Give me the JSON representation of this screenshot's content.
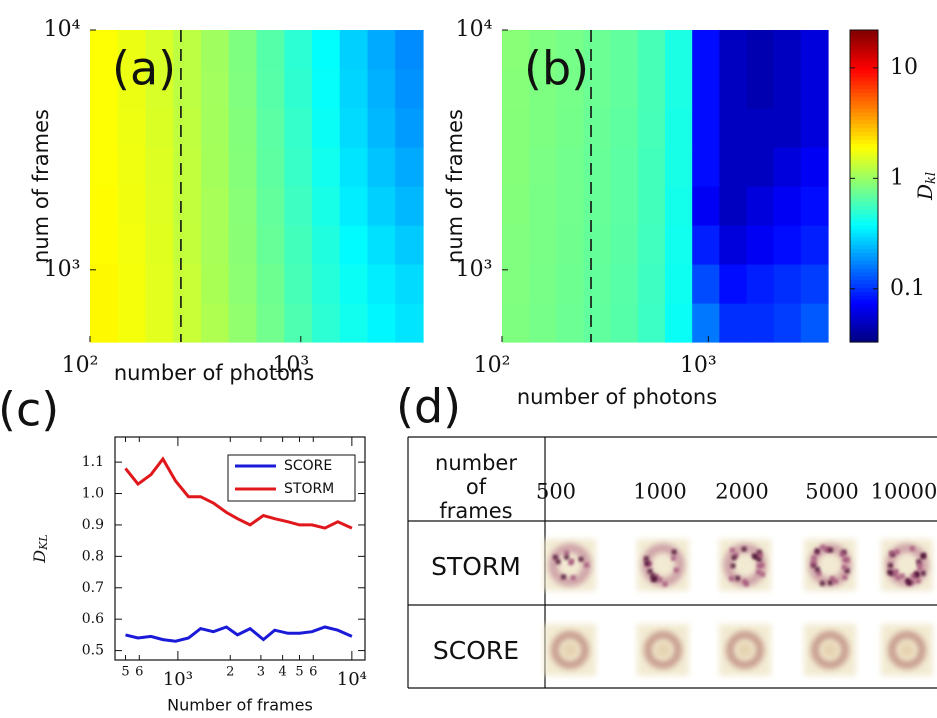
{
  "chart_data": [
    {
      "type": "heatmap",
      "panel": "(a)",
      "xlabel": "number of photons",
      "ylabel": "num of frames",
      "xscale": "log",
      "yscale": "log",
      "xlim": [
        100,
        3800
      ],
      "ylim": [
        500,
        10000
      ],
      "xticks": [
        {
          "value": 100,
          "label": "10²"
        },
        {
          "value": 1000,
          "label": "10³"
        }
      ],
      "yticks": [
        {
          "value": 1000,
          "label": "10³"
        },
        {
          "value": 10000,
          "label": "10⁴"
        }
      ],
      "vline": 270,
      "values": [
        [
          2.0,
          1.8,
          1.6,
          1.35,
          1.15,
          0.95,
          0.78,
          0.62,
          0.5,
          0.42,
          0.36,
          0.32
        ],
        [
          2.0,
          1.8,
          1.6,
          1.35,
          1.12,
          0.93,
          0.76,
          0.6,
          0.48,
          0.4,
          0.34,
          0.3
        ],
        [
          1.95,
          1.78,
          1.58,
          1.32,
          1.1,
          0.91,
          0.73,
          0.58,
          0.46,
          0.37,
          0.31,
          0.27
        ],
        [
          1.95,
          1.76,
          1.56,
          1.3,
          1.1,
          0.9,
          0.71,
          0.56,
          0.44,
          0.34,
          0.28,
          0.24
        ],
        [
          1.9,
          1.75,
          1.55,
          1.3,
          1.08,
          0.88,
          0.69,
          0.54,
          0.42,
          0.32,
          0.26,
          0.22
        ],
        [
          1.9,
          1.72,
          1.52,
          1.28,
          1.07,
          0.87,
          0.68,
          0.53,
          0.4,
          0.3,
          0.24,
          0.2
        ],
        [
          1.9,
          1.7,
          1.5,
          1.26,
          1.06,
          0.86,
          0.66,
          0.51,
          0.39,
          0.29,
          0.23,
          0.19
        ],
        [
          1.9,
          1.7,
          1.5,
          1.25,
          1.05,
          0.85,
          0.65,
          0.5,
          0.38,
          0.28,
          0.22,
          0.18
        ]
      ]
    },
    {
      "type": "heatmap",
      "panel": "(b)",
      "xlabel": "number of photons",
      "ylabel": "num of frames",
      "xscale": "log",
      "yscale": "log",
      "xlim": [
        100,
        3800
      ],
      "ylim": [
        500,
        10000
      ],
      "xticks": [
        {
          "value": 100,
          "label": "10²"
        },
        {
          "value": 1000,
          "label": "10³"
        }
      ],
      "yticks": [
        {
          "value": 1000,
          "label": "10³"
        },
        {
          "value": 10000,
          "label": "10⁴"
        }
      ],
      "vline": 270,
      "values": [
        [
          0.85,
          0.8,
          0.75,
          0.7,
          0.65,
          0.55,
          0.4,
          0.16,
          0.1,
          0.1,
          0.11,
          0.13
        ],
        [
          0.86,
          0.81,
          0.76,
          0.71,
          0.66,
          0.56,
          0.41,
          0.12,
          0.08,
          0.09,
          0.1,
          0.11
        ],
        [
          0.86,
          0.82,
          0.77,
          0.72,
          0.67,
          0.57,
          0.42,
          0.09,
          0.06,
          0.07,
          0.08,
          0.09
        ],
        [
          0.87,
          0.82,
          0.78,
          0.73,
          0.68,
          0.58,
          0.43,
          0.07,
          0.05,
          0.06,
          0.07,
          0.08
        ],
        [
          0.88,
          0.83,
          0.78,
          0.73,
          0.68,
          0.58,
          0.44,
          0.08,
          0.05,
          0.05,
          0.06,
          0.07
        ],
        [
          0.88,
          0.84,
          0.79,
          0.74,
          0.69,
          0.59,
          0.44,
          0.08,
          0.05,
          0.05,
          0.05,
          0.06
        ],
        [
          0.89,
          0.84,
          0.8,
          0.75,
          0.7,
          0.6,
          0.45,
          0.08,
          0.05,
          0.045,
          0.05,
          0.06
        ],
        [
          0.9,
          0.85,
          0.8,
          0.75,
          0.7,
          0.6,
          0.45,
          0.08,
          0.05,
          0.045,
          0.05,
          0.06
        ]
      ],
      "colorbar": {
        "colormap": "jet",
        "scale": "log",
        "clim": [
          0.033,
          22
        ],
        "ticks": [
          0.1,
          1,
          10
        ],
        "label": "D",
        "label_sub": "kl"
      }
    },
    {
      "type": "line",
      "panel": "(c)",
      "xlabel": "Number of frames",
      "ylabel": "D",
      "ylabel_sub": "KL",
      "xscale": "log",
      "xlim": [
        435,
        11900
      ],
      "ylim": [
        0.47,
        1.18
      ],
      "xticks": [
        {
          "value": 500,
          "label": "5"
        },
        {
          "value": 600,
          "label": "6"
        },
        {
          "value": 1000,
          "label": "10³"
        },
        {
          "value": 2000,
          "label": "2"
        },
        {
          "value": 3000,
          "label": "3"
        },
        {
          "value": 4000,
          "label": "4"
        },
        {
          "value": 5000,
          "label": "5"
        },
        {
          "value": 6000,
          "label": "6"
        },
        {
          "value": 10000,
          "label": "10⁴"
        }
      ],
      "yticks": [
        0.5,
        0.6,
        0.7,
        0.8,
        0.9,
        {
          "value": 1,
          "label": "1.0"
        },
        1.1
      ],
      "legend": "upper right",
      "x": [
        500,
        590,
        700,
        820,
        970,
        1150,
        1350,
        1600,
        1900,
        2200,
        2600,
        3100,
        3600,
        4300,
        5000,
        5900,
        7000,
        8300,
        10000
      ],
      "series": [
        {
          "name": "SCORE",
          "color": "#1a1ad8",
          "values": [
            0.55,
            0.54,
            0.545,
            0.535,
            0.53,
            0.54,
            0.57,
            0.56,
            0.575,
            0.55,
            0.57,
            0.535,
            0.565,
            0.555,
            0.555,
            0.56,
            0.575,
            0.565,
            0.545
          ]
        },
        {
          "name": "STORM",
          "color": "#e0181c",
          "values": [
            1.08,
            1.03,
            1.06,
            1.11,
            1.04,
            0.99,
            0.99,
            0.97,
            0.94,
            0.92,
            0.9,
            0.93,
            0.92,
            0.91,
            0.9,
            0.9,
            0.89,
            0.91,
            0.89
          ]
        }
      ]
    }
  ],
  "table": {
    "panel": "(d)",
    "header_label": [
      "number",
      "of",
      "frames"
    ],
    "columns": [
      "500",
      "1000",
      "2000",
      "5000",
      "10000"
    ],
    "rows": [
      "STORM",
      "SCORE"
    ]
  }
}
